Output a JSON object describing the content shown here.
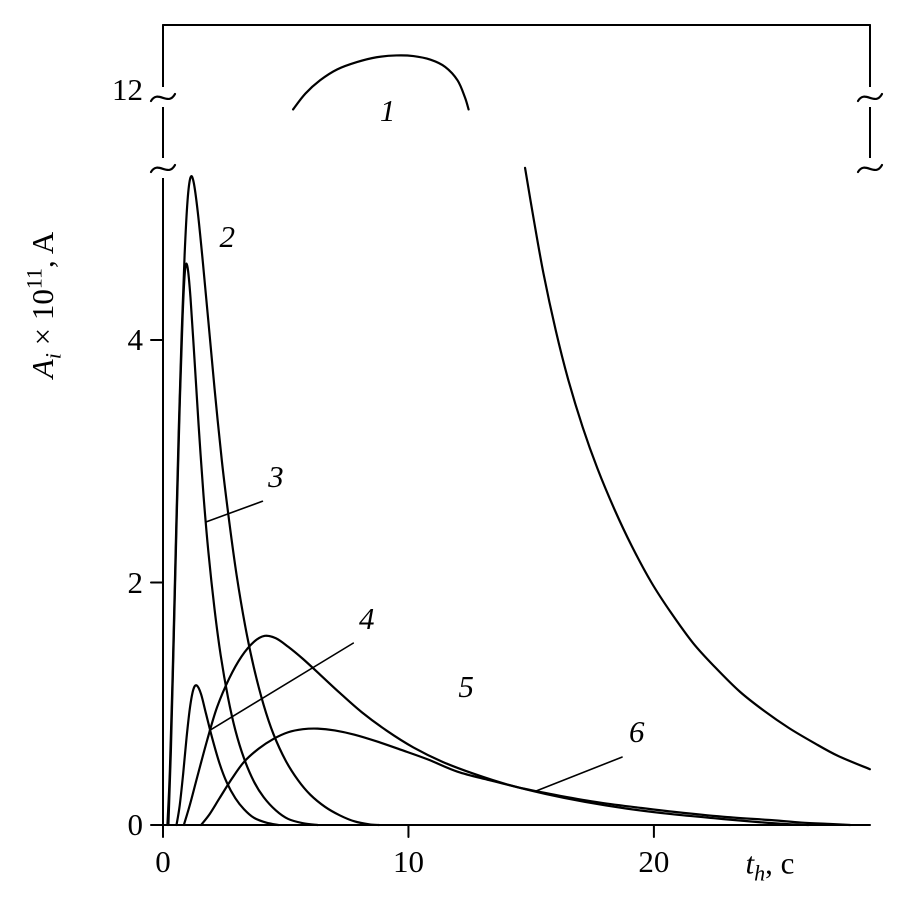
{
  "figure": {
    "background": "#ffffff",
    "line_color": "#000000"
  },
  "chart_data": {
    "type": "line",
    "title": "",
    "xlabel": {
      "var": "t",
      "sub": "h",
      "rest": ", c"
    },
    "ylabel": {
      "var": "A",
      "sub": "i",
      "mid": " × 10",
      "sup": "11",
      "rest": ", A"
    },
    "x_axis": {
      "min": 0,
      "max": 28.8,
      "ticks": [
        {
          "value": 0,
          "label": "0"
        },
        {
          "value": 10,
          "label": "10"
        },
        {
          "value": 20,
          "label": "20"
        }
      ]
    },
    "y_axis_main": {
      "min": 0,
      "max": 5.42,
      "ticks": [
        {
          "value": 0,
          "label": "0"
        },
        {
          "value": 2,
          "label": "2"
        },
        {
          "value": 4,
          "label": "4"
        }
      ]
    },
    "y_axis_top": {
      "reference_value": 12,
      "reference_label": "12"
    },
    "axis_break": {
      "between": [
        5.45,
        11.6
      ],
      "marker": "tilde"
    },
    "series": [
      {
        "name": "1-top",
        "label": "1",
        "panel": "top",
        "points": [
          [
            5.3,
            11.84
          ],
          [
            5.8,
            11.97
          ],
          [
            6.4,
            12.08
          ],
          [
            7.1,
            12.17
          ],
          [
            7.9,
            12.23
          ],
          [
            8.7,
            12.27
          ],
          [
            9.5,
            12.285
          ],
          [
            10.2,
            12.28
          ],
          [
            10.9,
            12.25
          ],
          [
            11.5,
            12.19
          ],
          [
            12.0,
            12.08
          ],
          [
            12.3,
            11.94
          ],
          [
            12.45,
            11.84
          ]
        ]
      },
      {
        "name": "1-tail",
        "label": "1",
        "panel": "main",
        "points": [
          [
            14.75,
            5.42
          ],
          [
            15.1,
            5.0
          ],
          [
            15.5,
            4.55
          ],
          [
            16.0,
            4.08
          ],
          [
            16.5,
            3.68
          ],
          [
            17.1,
            3.28
          ],
          [
            17.7,
            2.94
          ],
          [
            18.4,
            2.6
          ],
          [
            19.1,
            2.3
          ],
          [
            19.9,
            2.0
          ],
          [
            20.7,
            1.75
          ],
          [
            21.6,
            1.5
          ],
          [
            22.5,
            1.3
          ],
          [
            23.5,
            1.1
          ],
          [
            24.5,
            0.94
          ],
          [
            25.5,
            0.8
          ],
          [
            26.5,
            0.68
          ],
          [
            27.5,
            0.57
          ],
          [
            28.8,
            0.46
          ]
        ]
      },
      {
        "name": "2",
        "label": "2",
        "panel": "main",
        "points": [
          [
            0.18,
            0
          ],
          [
            0.28,
            0.45
          ],
          [
            0.4,
            1.3
          ],
          [
            0.52,
            2.3
          ],
          [
            0.64,
            3.25
          ],
          [
            0.76,
            4.05
          ],
          [
            0.88,
            4.7
          ],
          [
            1.0,
            5.15
          ],
          [
            1.12,
            5.34
          ],
          [
            1.25,
            5.3
          ],
          [
            1.42,
            5.05
          ],
          [
            1.62,
            4.65
          ],
          [
            1.85,
            4.15
          ],
          [
            2.1,
            3.6
          ],
          [
            2.4,
            3.0
          ],
          [
            2.7,
            2.5
          ],
          [
            3.0,
            2.06
          ],
          [
            3.35,
            1.64
          ],
          [
            3.7,
            1.3
          ],
          [
            4.1,
            0.99
          ],
          [
            4.5,
            0.75
          ],
          [
            5.0,
            0.53
          ],
          [
            5.5,
            0.37
          ],
          [
            6.0,
            0.25
          ],
          [
            6.6,
            0.15
          ],
          [
            7.2,
            0.08
          ],
          [
            7.8,
            0.03
          ],
          [
            8.4,
            0.005
          ],
          [
            8.8,
            0
          ]
        ]
      },
      {
        "name": "3",
        "label": "3",
        "panel": "main",
        "points": [
          [
            0.22,
            0
          ],
          [
            0.32,
            0.6
          ],
          [
            0.44,
            1.55
          ],
          [
            0.56,
            2.55
          ],
          [
            0.68,
            3.45
          ],
          [
            0.8,
            4.2
          ],
          [
            0.9,
            4.58
          ],
          [
            1.0,
            4.6
          ],
          [
            1.12,
            4.35
          ],
          [
            1.28,
            3.85
          ],
          [
            1.45,
            3.3
          ],
          [
            1.65,
            2.72
          ],
          [
            1.85,
            2.25
          ],
          [
            2.1,
            1.78
          ],
          [
            2.35,
            1.4
          ],
          [
            2.65,
            1.05
          ],
          [
            2.95,
            0.78
          ],
          [
            3.3,
            0.55
          ],
          [
            3.7,
            0.36
          ],
          [
            4.1,
            0.23
          ],
          [
            4.6,
            0.12
          ],
          [
            5.1,
            0.05
          ],
          [
            5.7,
            0.015
          ],
          [
            6.3,
            0
          ]
        ]
      },
      {
        "name": "4",
        "label": "4",
        "panel": "main",
        "points": [
          [
            0.55,
            0
          ],
          [
            0.68,
            0.16
          ],
          [
            0.82,
            0.42
          ],
          [
            0.96,
            0.72
          ],
          [
            1.1,
            0.97
          ],
          [
            1.24,
            1.12
          ],
          [
            1.38,
            1.15
          ],
          [
            1.55,
            1.08
          ],
          [
            1.75,
            0.92
          ],
          [
            2.0,
            0.72
          ],
          [
            2.3,
            0.51
          ],
          [
            2.6,
            0.35
          ],
          [
            2.95,
            0.22
          ],
          [
            3.3,
            0.13
          ],
          [
            3.7,
            0.06
          ],
          [
            4.2,
            0.02
          ],
          [
            4.7,
            0
          ]
        ]
      },
      {
        "name": "5",
        "label": "5",
        "panel": "main",
        "points": [
          [
            0.85,
            0
          ],
          [
            1.1,
            0.17
          ],
          [
            1.4,
            0.4
          ],
          [
            1.8,
            0.7
          ],
          [
            2.2,
            0.97
          ],
          [
            2.7,
            1.21
          ],
          [
            3.2,
            1.39
          ],
          [
            3.7,
            1.51
          ],
          [
            4.15,
            1.56
          ],
          [
            4.6,
            1.54
          ],
          [
            5.1,
            1.47
          ],
          [
            5.7,
            1.37
          ],
          [
            6.4,
            1.24
          ],
          [
            7.2,
            1.09
          ],
          [
            8.1,
            0.93
          ],
          [
            9.1,
            0.78
          ],
          [
            10.2,
            0.64
          ],
          [
            11.4,
            0.52
          ],
          [
            12.7,
            0.42
          ],
          [
            14.1,
            0.33
          ],
          [
            15.6,
            0.255
          ],
          [
            17.2,
            0.19
          ],
          [
            18.9,
            0.135
          ],
          [
            20.7,
            0.09
          ],
          [
            22.5,
            0.055
          ],
          [
            24.2,
            0.025
          ],
          [
            25.6,
            0.005
          ],
          [
            26.3,
            0
          ]
        ]
      },
      {
        "name": "6",
        "label": "6",
        "panel": "main",
        "points": [
          [
            1.55,
            0
          ],
          [
            1.9,
            0.09
          ],
          [
            2.3,
            0.22
          ],
          [
            2.8,
            0.38
          ],
          [
            3.3,
            0.52
          ],
          [
            3.9,
            0.63
          ],
          [
            4.5,
            0.71
          ],
          [
            5.1,
            0.765
          ],
          [
            5.7,
            0.79
          ],
          [
            6.3,
            0.795
          ],
          [
            7.0,
            0.78
          ],
          [
            7.8,
            0.745
          ],
          [
            8.7,
            0.69
          ],
          [
            9.7,
            0.62
          ],
          [
            10.8,
            0.54
          ],
          [
            12.0,
            0.44
          ],
          [
            13.3,
            0.37
          ],
          [
            14.7,
            0.3
          ],
          [
            16.2,
            0.24
          ],
          [
            17.8,
            0.185
          ],
          [
            19.5,
            0.14
          ],
          [
            21.2,
            0.1
          ],
          [
            23.0,
            0.065
          ],
          [
            24.8,
            0.04
          ],
          [
            26.0,
            0.02
          ],
          [
            27.2,
            0.008
          ],
          [
            28.0,
            0
          ]
        ]
      }
    ],
    "labels": [
      {
        "text": "1",
        "panel": "top",
        "x": 9.15,
        "y": 11.83
      },
      {
        "text": "2",
        "panel": "main",
        "x": 2.62,
        "y": 4.85
      },
      {
        "text": "3",
        "panel": "main",
        "x": 4.6,
        "y": 2.87,
        "leader": [
          [
            4.05,
            2.67
          ],
          [
            1.76,
            2.5
          ]
        ]
      },
      {
        "text": "4",
        "panel": "main",
        "x": 8.3,
        "y": 1.7,
        "leader": [
          [
            7.75,
            1.5
          ],
          [
            1.9,
            0.78
          ]
        ]
      },
      {
        "text": "5",
        "panel": "main",
        "x": 12.35,
        "y": 1.14
      },
      {
        "text": "6",
        "panel": "main",
        "x": 19.3,
        "y": 0.77,
        "leader": [
          [
            18.7,
            0.56
          ],
          [
            15.2,
            0.28
          ]
        ]
      }
    ],
    "legend": null,
    "grid": false
  }
}
